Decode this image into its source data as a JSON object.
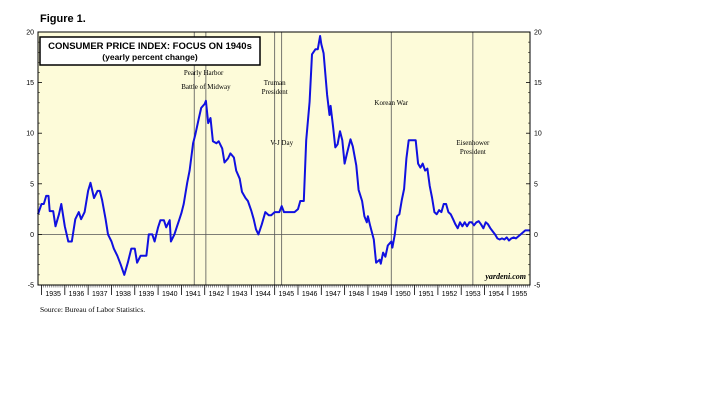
{
  "figure_label": "Figure 1.",
  "source": "Source: Bureau of Labor Statistics.",
  "brand": "yardeni.com",
  "colors": {
    "background": "#fdfbd9",
    "line": "#1010e0",
    "zero_line": "#555555"
  },
  "chart_data": {
    "type": "line",
    "title": "CONSUMER PRICE INDEX: FOCUS ON 1940s",
    "subtitle": "(yearly percent change)",
    "xlabel": "",
    "ylabel": "",
    "xlim": [
      1934.85,
      1955.95
    ],
    "ylim": [
      -5,
      20
    ],
    "yticks": [
      -5,
      0,
      5,
      10,
      15,
      20
    ],
    "xticks": [
      "1935",
      "1936",
      "1937",
      "1938",
      "1939",
      "1940",
      "1941",
      "1942",
      "1943",
      "1944",
      "1945",
      "1946",
      "1947",
      "1948",
      "1949",
      "1950",
      "1951",
      "1952",
      "1953",
      "1954",
      "1955"
    ],
    "grid": false,
    "series": [
      {
        "points": [
          [
            1934.85,
            2.0
          ],
          [
            1935.0,
            3.0
          ],
          [
            1935.1,
            3.0
          ],
          [
            1935.2,
            3.8
          ],
          [
            1935.3,
            3.8
          ],
          [
            1935.35,
            2.3
          ],
          [
            1935.5,
            2.3
          ],
          [
            1935.6,
            0.8
          ],
          [
            1935.75,
            2.0
          ],
          [
            1935.85,
            3.0
          ],
          [
            1936.0,
            0.8
          ],
          [
            1936.15,
            -0.7
          ],
          [
            1936.3,
            -0.7
          ],
          [
            1936.45,
            1.5
          ],
          [
            1936.6,
            2.2
          ],
          [
            1936.7,
            1.5
          ],
          [
            1936.85,
            2.2
          ],
          [
            1937.0,
            4.3
          ],
          [
            1937.1,
            5.1
          ],
          [
            1937.25,
            3.6
          ],
          [
            1937.4,
            4.3
          ],
          [
            1937.5,
            4.3
          ],
          [
            1937.6,
            3.4
          ],
          [
            1937.75,
            1.5
          ],
          [
            1937.85,
            0.0
          ],
          [
            1938.0,
            -0.7
          ],
          [
            1938.1,
            -1.4
          ],
          [
            1938.25,
            -2.1
          ],
          [
            1938.4,
            -3.0
          ],
          [
            1938.55,
            -4.0
          ],
          [
            1938.7,
            -2.8
          ],
          [
            1938.85,
            -1.4
          ],
          [
            1939.0,
            -1.4
          ],
          [
            1939.1,
            -2.8
          ],
          [
            1939.25,
            -2.1
          ],
          [
            1939.4,
            -2.1
          ],
          [
            1939.5,
            -2.1
          ],
          [
            1939.6,
            0.0
          ],
          [
            1939.75,
            0.0
          ],
          [
            1939.85,
            -0.7
          ],
          [
            1940.0,
            0.7
          ],
          [
            1940.1,
            1.4
          ],
          [
            1940.25,
            1.4
          ],
          [
            1940.35,
            0.7
          ],
          [
            1940.5,
            1.4
          ],
          [
            1940.55,
            -0.7
          ],
          [
            1940.7,
            0.0
          ],
          [
            1940.8,
            0.7
          ],
          [
            1940.9,
            1.4
          ],
          [
            1941.0,
            2.1
          ],
          [
            1941.1,
            3.0
          ],
          [
            1941.25,
            5.1
          ],
          [
            1941.35,
            6.3
          ],
          [
            1941.5,
            9.0
          ],
          [
            1941.6,
            9.9
          ],
          [
            1941.75,
            11.5
          ],
          [
            1941.85,
            12.5
          ],
          [
            1942.0,
            12.9
          ],
          [
            1942.05,
            13.2
          ],
          [
            1942.15,
            11.0
          ],
          [
            1942.25,
            11.5
          ],
          [
            1942.35,
            9.2
          ],
          [
            1942.5,
            9.0
          ],
          [
            1942.6,
            9.2
          ],
          [
            1942.75,
            8.5
          ],
          [
            1942.85,
            7.1
          ],
          [
            1943.0,
            7.5
          ],
          [
            1943.1,
            8.0
          ],
          [
            1943.25,
            7.6
          ],
          [
            1943.35,
            6.3
          ],
          [
            1943.5,
            5.5
          ],
          [
            1943.6,
            4.2
          ],
          [
            1943.75,
            3.6
          ],
          [
            1943.85,
            3.3
          ],
          [
            1944.0,
            2.3
          ],
          [
            1944.1,
            1.5
          ],
          [
            1944.2,
            0.5
          ],
          [
            1944.3,
            0.0
          ],
          [
            1944.45,
            1.0
          ],
          [
            1944.6,
            2.2
          ],
          [
            1944.75,
            1.9
          ],
          [
            1944.85,
            1.9
          ],
          [
            1945.0,
            2.2
          ],
          [
            1945.1,
            2.2
          ],
          [
            1945.2,
            2.2
          ],
          [
            1945.3,
            2.8
          ],
          [
            1945.4,
            2.2
          ],
          [
            1945.5,
            2.2
          ],
          [
            1945.75,
            2.2
          ],
          [
            1945.85,
            2.2
          ],
          [
            1946.0,
            2.5
          ],
          [
            1946.1,
            3.3
          ],
          [
            1946.25,
            3.3
          ],
          [
            1946.35,
            9.3
          ],
          [
            1946.5,
            13.1
          ],
          [
            1946.6,
            17.8
          ],
          [
            1946.75,
            18.3
          ],
          [
            1946.85,
            18.3
          ],
          [
            1946.95,
            19.6
          ],
          [
            1947.0,
            18.8
          ],
          [
            1947.1,
            17.9
          ],
          [
            1947.25,
            13.8
          ],
          [
            1947.35,
            11.8
          ],
          [
            1947.4,
            12.7
          ],
          [
            1947.5,
            10.7
          ],
          [
            1947.6,
            8.6
          ],
          [
            1947.7,
            8.9
          ],
          [
            1947.8,
            10.2
          ],
          [
            1947.9,
            9.3
          ],
          [
            1948.0,
            7.0
          ],
          [
            1948.1,
            8.0
          ],
          [
            1948.25,
            9.4
          ],
          [
            1948.35,
            8.7
          ],
          [
            1948.5,
            6.8
          ],
          [
            1948.6,
            4.4
          ],
          [
            1948.75,
            3.3
          ],
          [
            1948.85,
            1.8
          ],
          [
            1948.95,
            1.2
          ],
          [
            1949.0,
            1.8
          ],
          [
            1949.1,
            0.8
          ],
          [
            1949.25,
            -0.5
          ],
          [
            1949.35,
            -2.8
          ],
          [
            1949.5,
            -2.5
          ],
          [
            1949.55,
            -2.9
          ],
          [
            1949.65,
            -1.8
          ],
          [
            1949.75,
            -2.2
          ],
          [
            1949.85,
            -1.1
          ],
          [
            1950.0,
            -0.7
          ],
          [
            1950.05,
            -1.3
          ],
          [
            1950.15,
            0.0
          ],
          [
            1950.25,
            1.8
          ],
          [
            1950.35,
            2.0
          ],
          [
            1950.45,
            3.4
          ],
          [
            1950.55,
            4.5
          ],
          [
            1950.65,
            7.5
          ],
          [
            1950.75,
            9.3
          ],
          [
            1950.9,
            9.3
          ],
          [
            1951.05,
            9.3
          ],
          [
            1951.15,
            7.0
          ],
          [
            1951.25,
            6.6
          ],
          [
            1951.35,
            7.0
          ],
          [
            1951.45,
            6.3
          ],
          [
            1951.55,
            6.5
          ],
          [
            1951.65,
            4.8
          ],
          [
            1951.75,
            3.6
          ],
          [
            1951.85,
            2.2
          ],
          [
            1951.95,
            2.0
          ],
          [
            1952.05,
            2.4
          ],
          [
            1952.15,
            2.2
          ],
          [
            1952.25,
            3.0
          ],
          [
            1952.35,
            3.0
          ],
          [
            1952.45,
            2.2
          ],
          [
            1952.55,
            2.0
          ],
          [
            1952.65,
            1.5
          ],
          [
            1952.75,
            1.0
          ],
          [
            1952.85,
            0.6
          ],
          [
            1952.95,
            1.2
          ],
          [
            1953.05,
            0.8
          ],
          [
            1953.15,
            1.2
          ],
          [
            1953.25,
            0.8
          ],
          [
            1953.35,
            1.2
          ],
          [
            1953.45,
            1.2
          ],
          [
            1953.55,
            0.9
          ],
          [
            1953.65,
            1.2
          ],
          [
            1953.75,
            1.3
          ],
          [
            1953.85,
            1.0
          ],
          [
            1953.95,
            0.6
          ],
          [
            1954.05,
            1.2
          ],
          [
            1954.15,
            1.0
          ],
          [
            1954.25,
            0.6
          ],
          [
            1954.35,
            0.3
          ],
          [
            1954.45,
            0.0
          ],
          [
            1954.55,
            -0.4
          ],
          [
            1954.65,
            -0.5
          ],
          [
            1954.75,
            -0.4
          ],
          [
            1954.85,
            -0.5
          ],
          [
            1954.95,
            -0.3
          ],
          [
            1955.05,
            -0.6
          ],
          [
            1955.15,
            -0.4
          ],
          [
            1955.25,
            -0.3
          ],
          [
            1955.35,
            -0.4
          ],
          [
            1955.45,
            -0.2
          ],
          [
            1955.55,
            0.0
          ],
          [
            1955.65,
            0.2
          ],
          [
            1955.75,
            0.4
          ],
          [
            1955.85,
            0.4
          ],
          [
            1955.95,
            0.4
          ]
        ]
      }
    ],
    "annotations": [
      {
        "x": 1941.95,
        "lines": [
          "Pearly Harbor"
        ],
        "target": 1941.55
      },
      {
        "x": 1942.05,
        "lines": [
          "Battle of Midway"
        ],
        "target": 1942.05
      },
      {
        "x": 1945.0,
        "lines": [
          "Truman",
          "President"
        ],
        "target": 1945.0
      },
      {
        "x": 1945.3,
        "lines": [
          "V-J Day"
        ],
        "target": 1945.3
      },
      {
        "x": 1950.0,
        "lines": [
          "Korean War"
        ],
        "target": 1950.0
      },
      {
        "x": 1953.5,
        "lines": [
          "Eisenhower",
          "President"
        ],
        "target": 1953.5
      }
    ]
  }
}
